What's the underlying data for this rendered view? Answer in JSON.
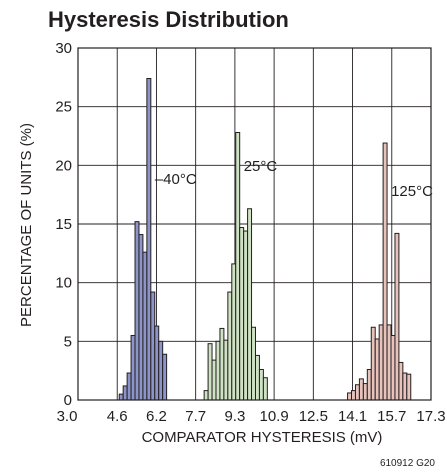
{
  "chart_data": {
    "type": "bar",
    "title": "Hysteresis Distribution",
    "xlabel": "COMPARATOR HYSTERESIS (mV)",
    "ylabel": "PERCENTAGE OF UNITS (%)",
    "figure_code": "610912 G20",
    "xlim": [
      3.0,
      17.3
    ],
    "ylim": [
      0,
      30
    ],
    "x_ticks": [
      "3.0",
      "4.6",
      "6.2",
      "7.7",
      "9.3",
      "10.9",
      "12.5",
      "14.1",
      "15.7",
      "17.3"
    ],
    "y_ticks": [
      "0",
      "5",
      "10",
      "15",
      "20",
      "25",
      "30"
    ],
    "grid": true,
    "bin_width": 0.16,
    "series": [
      {
        "name": "–40°C",
        "color": "#8c94c8",
        "x": [
          4.75,
          4.91,
          5.07,
          5.23,
          5.39,
          5.55,
          5.71,
          5.87,
          6.03,
          6.19,
          6.35,
          6.51
        ],
        "values": [
          0.5,
          1.2,
          2.3,
          5.5,
          15.2,
          14.1,
          12.6,
          27.4,
          9.2,
          6.3,
          5.0,
          3.9
        ]
      },
      {
        "name": "25°C",
        "color": "#cfe2c4",
        "x": [
          8.19,
          8.35,
          8.51,
          8.67,
          8.83,
          8.99,
          9.15,
          9.31,
          9.47,
          9.63,
          9.79,
          9.95,
          10.11,
          10.27,
          10.43,
          10.59
        ],
        "values": [
          0.8,
          4.8,
          3.4,
          5.0,
          6.1,
          5.1,
          9.2,
          11.6,
          22.8,
          14.7,
          14.4,
          16.3,
          6.2,
          3.8,
          2.6,
          1.9
        ]
      },
      {
        "name": "125°C",
        "color": "#e7c3bc",
        "x": [
          14.0,
          14.16,
          14.32,
          14.48,
          14.64,
          14.8,
          14.96,
          15.12,
          15.28,
          15.44,
          15.6,
          15.76,
          15.92,
          16.08,
          16.24,
          16.4
        ],
        "values": [
          0.6,
          0.8,
          1.3,
          1.8,
          1.4,
          2.6,
          6.2,
          5.2,
          6.4,
          21.9,
          6.4,
          5.5,
          14.2,
          3.2,
          2.3,
          2.2
        ]
      }
    ]
  }
}
